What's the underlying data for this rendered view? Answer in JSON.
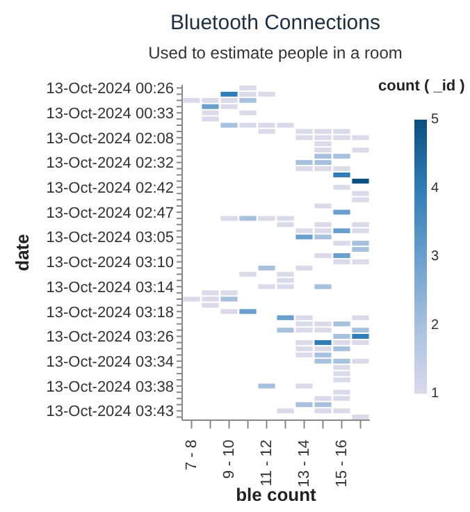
{
  "chart_data": {
    "type": "heatmap",
    "title": "Bluetooth Connections",
    "subtitle": "Used to estimate people in a room",
    "xlabel": "ble count",
    "ylabel": "date",
    "clabel": "count ( _id )",
    "categories": [
      "7 - 8",
      null,
      "9 - 10",
      null,
      "11 - 12",
      null,
      "13 - 14",
      null,
      "15 - 16",
      null
    ],
    "y_categories": [
      "13-Oct-2024 00:26",
      null,
      null,
      null,
      "13-Oct-2024 00:33",
      null,
      null,
      null,
      "13-Oct-2024 02:08",
      null,
      null,
      null,
      "13-Oct-2024 02:32",
      null,
      null,
      null,
      "13-Oct-2024 02:42",
      null,
      null,
      null,
      "13-Oct-2024 02:47",
      null,
      null,
      null,
      "13-Oct-2024 03:05",
      null,
      null,
      null,
      "13-Oct-2024 03:10",
      null,
      null,
      null,
      "13-Oct-2024 03:14",
      null,
      null,
      null,
      "13-Oct-2024 03:18",
      null,
      null,
      null,
      "13-Oct-2024 03:26",
      null,
      null,
      null,
      "13-Oct-2024 03:34",
      null,
      null,
      null,
      "13-Oct-2024 03:38",
      null,
      null,
      null,
      "13-Oct-2024 03:43",
      null
    ],
    "cells": [
      [
        null,
        null,
        null,
        1,
        null,
        null,
        null,
        null,
        null,
        null
      ],
      [
        null,
        null,
        4,
        1,
        1,
        null,
        null,
        null,
        null,
        null
      ],
      [
        1,
        1,
        1,
        2,
        null,
        null,
        null,
        null,
        null,
        null
      ],
      [
        null,
        3,
        1,
        null,
        null,
        null,
        null,
        null,
        null,
        null
      ],
      [
        null,
        1,
        null,
        1,
        null,
        null,
        null,
        null,
        null,
        null
      ],
      [
        null,
        1,
        null,
        null,
        null,
        null,
        null,
        null,
        null,
        null
      ],
      [
        null,
        null,
        2,
        1,
        1,
        1,
        null,
        null,
        null,
        null
      ],
      [
        null,
        null,
        null,
        null,
        1,
        null,
        1,
        1,
        1,
        null
      ],
      [
        null,
        null,
        null,
        null,
        null,
        null,
        1,
        1,
        1,
        1
      ],
      [
        null,
        null,
        null,
        null,
        null,
        null,
        null,
        1,
        null,
        null
      ],
      [
        null,
        null,
        null,
        null,
        null,
        null,
        null,
        1,
        null,
        1
      ],
      [
        null,
        null,
        null,
        null,
        null,
        null,
        null,
        2,
        2,
        null
      ],
      [
        null,
        null,
        null,
        null,
        null,
        null,
        2,
        2,
        null,
        null
      ],
      [
        null,
        null,
        null,
        null,
        null,
        null,
        1,
        1,
        1,
        null
      ],
      [
        null,
        null,
        null,
        null,
        null,
        null,
        null,
        null,
        4,
        null
      ],
      [
        null,
        null,
        null,
        null,
        null,
        null,
        null,
        null,
        null,
        5
      ],
      [
        null,
        null,
        null,
        null,
        null,
        null,
        null,
        null,
        1,
        null
      ],
      [
        null,
        null,
        null,
        null,
        null,
        null,
        null,
        null,
        null,
        1
      ],
      [
        null,
        null,
        null,
        null,
        null,
        null,
        null,
        null,
        null,
        1
      ],
      [
        null,
        null,
        null,
        null,
        null,
        null,
        null,
        1,
        null,
        null
      ],
      [
        null,
        null,
        null,
        null,
        null,
        null,
        null,
        null,
        3,
        null
      ],
      [
        null,
        null,
        1,
        2,
        1,
        1,
        null,
        null,
        null,
        null
      ],
      [
        null,
        null,
        null,
        null,
        null,
        1,
        null,
        1,
        null,
        1
      ],
      [
        null,
        null,
        null,
        null,
        null,
        null,
        1,
        1,
        3,
        1
      ],
      [
        null,
        null,
        null,
        null,
        null,
        null,
        3,
        2,
        null,
        null
      ],
      [
        null,
        null,
        null,
        null,
        null,
        null,
        null,
        null,
        1,
        2
      ],
      [
        null,
        null,
        null,
        null,
        null,
        null,
        null,
        null,
        null,
        2
      ],
      [
        null,
        null,
        null,
        null,
        null,
        null,
        null,
        1,
        3,
        null
      ],
      [
        null,
        null,
        null,
        null,
        null,
        null,
        null,
        null,
        1,
        1
      ],
      [
        null,
        null,
        null,
        null,
        2,
        null,
        1,
        null,
        null,
        null
      ],
      [
        null,
        null,
        null,
        1,
        null,
        1,
        null,
        null,
        null,
        null
      ],
      [
        null,
        null,
        null,
        null,
        null,
        1,
        null,
        null,
        null,
        null
      ],
      [
        null,
        null,
        null,
        null,
        1,
        1,
        null,
        2,
        null,
        null
      ],
      [
        null,
        1,
        1,
        null,
        null,
        null,
        null,
        null,
        null,
        null
      ],
      [
        1,
        1,
        2,
        null,
        null,
        null,
        null,
        null,
        null,
        null
      ],
      [
        null,
        1,
        null,
        null,
        null,
        null,
        null,
        null,
        null,
        null
      ],
      [
        null,
        null,
        1,
        3,
        null,
        null,
        null,
        null,
        null,
        null
      ],
      [
        null,
        null,
        null,
        null,
        null,
        3,
        1,
        null,
        null,
        1
      ],
      [
        null,
        null,
        null,
        null,
        null,
        null,
        1,
        1,
        2,
        null
      ],
      [
        null,
        null,
        null,
        null,
        null,
        2,
        1,
        1,
        null,
        2
      ],
      [
        null,
        null,
        null,
        null,
        null,
        null,
        null,
        null,
        2,
        4
      ],
      [
        null,
        null,
        null,
        null,
        null,
        null,
        1,
        4,
        1,
        1
      ],
      [
        null,
        null,
        null,
        null,
        null,
        null,
        1,
        1,
        2,
        null
      ],
      [
        null,
        null,
        null,
        null,
        null,
        null,
        1,
        2,
        null,
        null
      ],
      [
        null,
        null,
        null,
        null,
        null,
        null,
        null,
        2,
        2,
        1
      ],
      [
        null,
        null,
        null,
        null,
        null,
        null,
        null,
        null,
        1,
        null
      ],
      [
        null,
        null,
        null,
        null,
        null,
        null,
        null,
        null,
        1,
        null
      ],
      [
        null,
        null,
        null,
        null,
        null,
        null,
        null,
        null,
        1,
        null
      ],
      [
        null,
        null,
        null,
        null,
        2,
        null,
        1,
        null,
        null,
        null
      ],
      [
        null,
        null,
        null,
        null,
        null,
        null,
        null,
        null,
        1,
        null
      ],
      [
        null,
        null,
        null,
        null,
        null,
        null,
        null,
        1,
        1,
        null
      ],
      [
        null,
        null,
        null,
        null,
        null,
        null,
        2,
        2,
        null,
        null
      ],
      [
        null,
        null,
        null,
        null,
        null,
        1,
        null,
        1,
        1,
        null
      ],
      [
        null,
        null,
        null,
        null,
        null,
        null,
        null,
        null,
        null,
        1
      ]
    ],
    "clim": [
      1,
      5
    ],
    "cticks": [
      1,
      2,
      3,
      4,
      5
    ]
  }
}
